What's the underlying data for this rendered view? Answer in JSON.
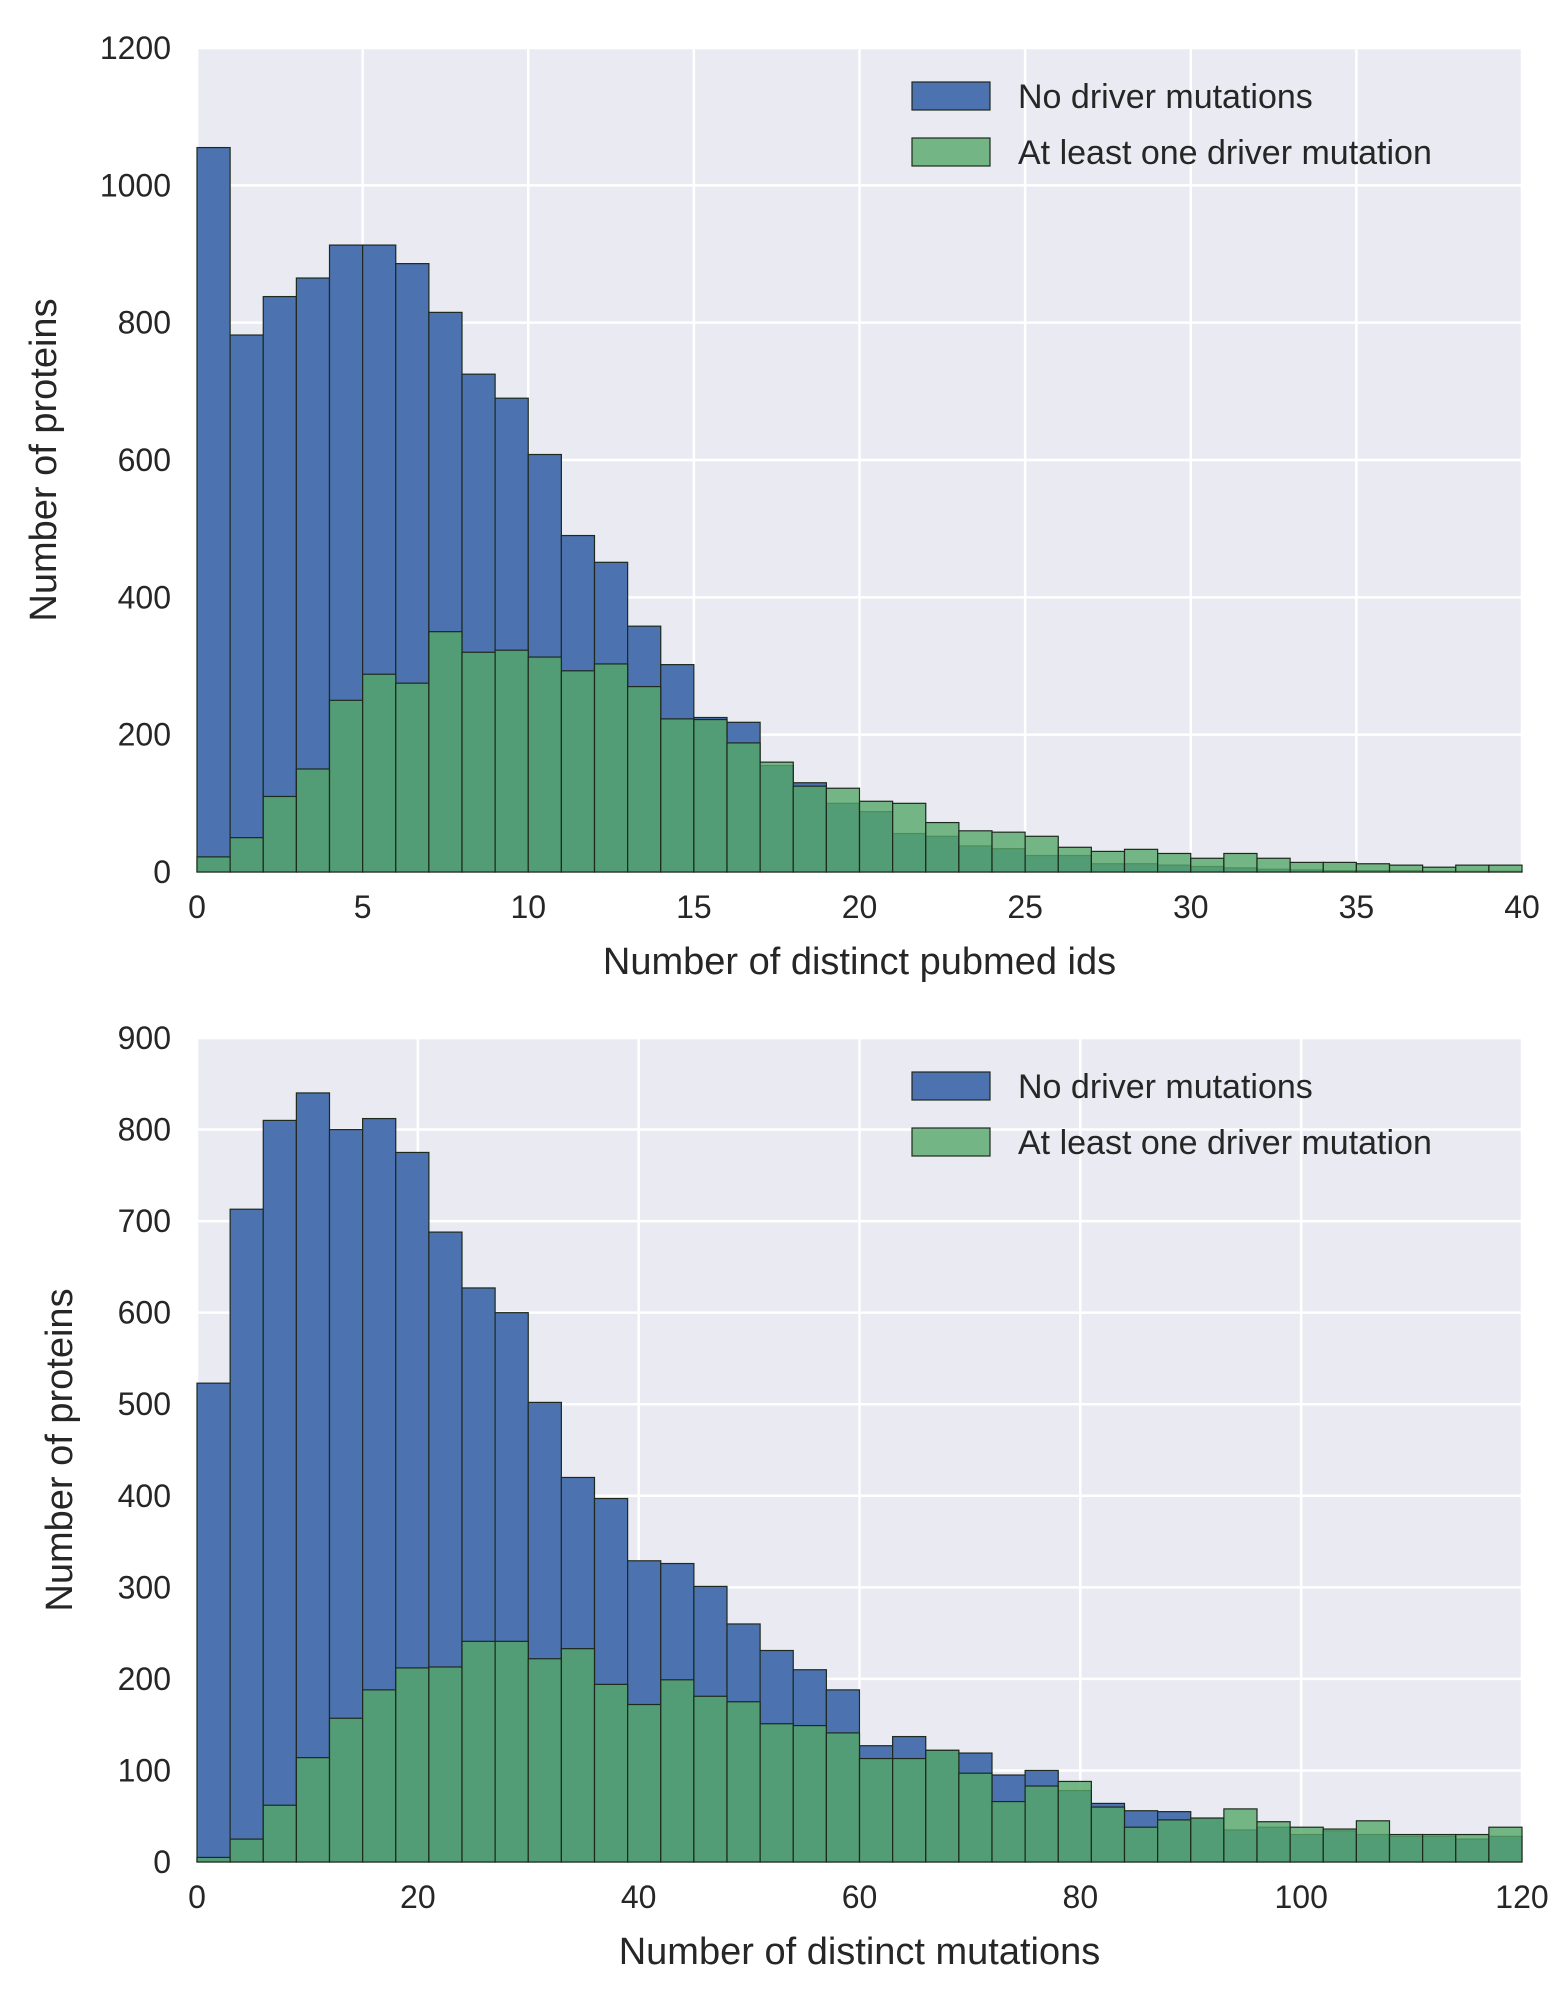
{
  "chart_data": [
    {
      "type": "bar",
      "xlabel": "Number of distinct pubmed ids",
      "ylabel": "Number of proteins",
      "xlim": [
        0,
        40
      ],
      "ylim": [
        0,
        1200
      ],
      "xticks": [
        "0",
        "5",
        "10",
        "15",
        "20",
        "25",
        "30",
        "35",
        "40"
      ],
      "yticks": [
        "0",
        "200",
        "400",
        "600",
        "800",
        "1000",
        "1200"
      ],
      "grid": true,
      "legend_position": "top-right",
      "bin_width": 1,
      "bin_starts": [
        0,
        1,
        2,
        3,
        4,
        5,
        6,
        7,
        8,
        9,
        10,
        11,
        12,
        13,
        14,
        15,
        16,
        17,
        18,
        19,
        20,
        21,
        22,
        23,
        24,
        25,
        26,
        27,
        28,
        29,
        30,
        31,
        32,
        33,
        34,
        35,
        36,
        37,
        38,
        39
      ],
      "series": [
        {
          "name": "No driver mutations",
          "color": "#4c72b0",
          "values": [
            1055,
            782,
            838,
            865,
            913,
            913,
            886,
            815,
            725,
            690,
            608,
            490,
            451,
            358,
            302,
            225,
            218,
            155,
            130,
            100,
            88,
            56,
            52,
            38,
            34,
            24,
            24,
            12,
            12,
            10,
            8,
            6,
            4,
            3,
            2,
            2,
            2,
            1,
            1,
            1
          ]
        },
        {
          "name": "At least one driver mutation",
          "color": "#55a868",
          "values": [
            22,
            50,
            110,
            150,
            250,
            288,
            275,
            350,
            320,
            323,
            313,
            293,
            303,
            270,
            223,
            222,
            188,
            160,
            125,
            122,
            103,
            100,
            72,
            60,
            58,
            52,
            36,
            30,
            33,
            27,
            20,
            27,
            20,
            14,
            14,
            12,
            10,
            7,
            10,
            10
          ]
        }
      ]
    },
    {
      "type": "bar",
      "xlabel": "Number of distinct mutations",
      "ylabel": "Number of proteins",
      "xlim": [
        0,
        120
      ],
      "ylim": [
        0,
        900
      ],
      "xticks": [
        "0",
        "20",
        "40",
        "60",
        "80",
        "100",
        "120"
      ],
      "yticks": [
        "0",
        "100",
        "200",
        "300",
        "400",
        "500",
        "600",
        "700",
        "800",
        "900"
      ],
      "grid": true,
      "legend_position": "top-right",
      "bin_width": 3,
      "bin_starts": [
        0,
        3,
        6,
        9,
        12,
        15,
        18,
        21,
        24,
        27,
        30,
        33,
        36,
        39,
        42,
        45,
        48,
        51,
        54,
        57,
        60,
        63,
        66,
        69,
        72,
        75,
        78,
        81,
        84,
        87,
        90,
        93,
        96,
        99,
        102,
        105,
        108,
        111,
        114,
        117
      ],
      "series": [
        {
          "name": "No driver mutations",
          "color": "#4c72b0",
          "values": [
            523,
            713,
            810,
            840,
            800,
            812,
            775,
            688,
            627,
            600,
            502,
            420,
            397,
            329,
            326,
            301,
            260,
            231,
            210,
            188,
            127,
            137,
            122,
            119,
            95,
            100,
            78,
            64,
            56,
            55,
            48,
            35,
            38,
            30,
            34,
            30,
            28,
            28,
            25,
            28
          ]
        },
        {
          "name": "At least one driver mutation",
          "color": "#55a868",
          "values": [
            5,
            25,
            62,
            114,
            157,
            188,
            212,
            213,
            241,
            241,
            222,
            233,
            194,
            172,
            199,
            181,
            175,
            151,
            149,
            141,
            113,
            113,
            122,
            97,
            66,
            83,
            88,
            60,
            38,
            46,
            48,
            58,
            44,
            38,
            36,
            45,
            30,
            30,
            30,
            38
          ]
        }
      ]
    }
  ]
}
